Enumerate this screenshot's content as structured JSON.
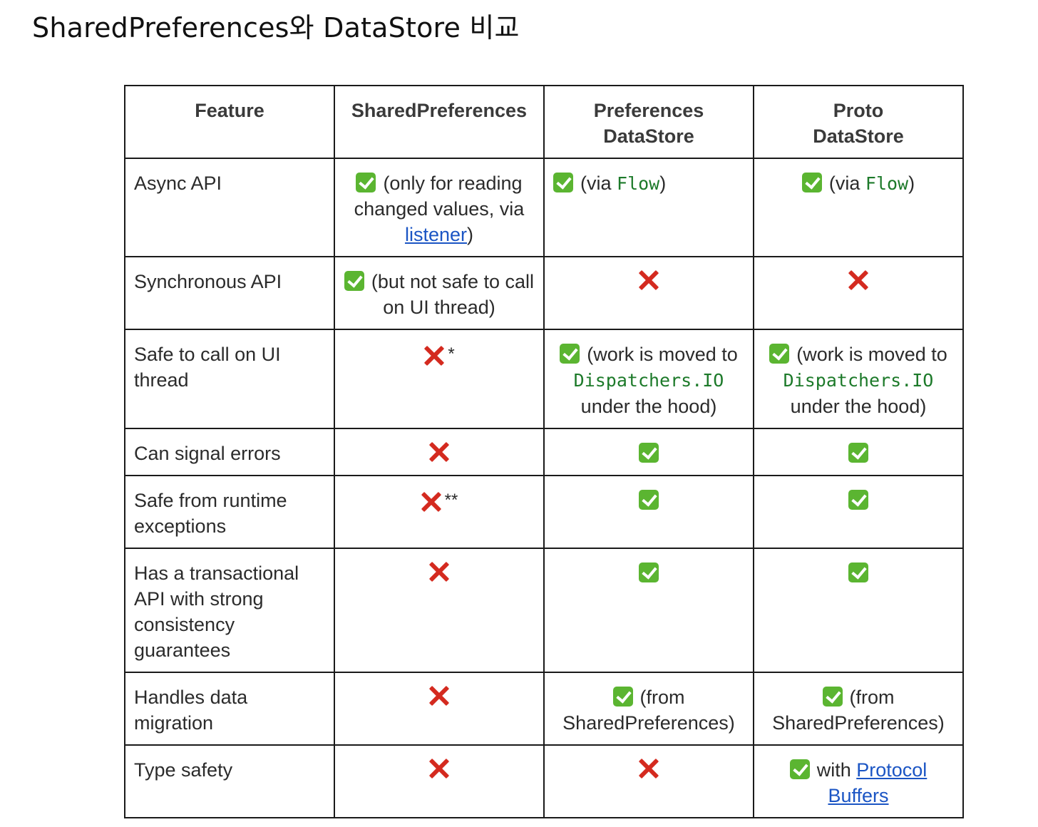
{
  "page": {
    "title": "SharedPreferences와 DataStore 비교"
  },
  "table": {
    "headers": {
      "feature": "Feature",
      "shared": "SharedPreferences",
      "prefs_line1": "Preferences",
      "prefs_line2": "DataStore",
      "proto_line1": "Proto",
      "proto_line2": "DataStore"
    },
    "rows": {
      "async_api": {
        "feature": "Async API",
        "shared_text_before": "(only for reading changed values, via ",
        "shared_link": "listener",
        "shared_text_after": ")",
        "prefs_before": "(via ",
        "prefs_code": "Flow",
        "prefs_after": ")",
        "proto_before": "(via ",
        "proto_code": "Flow",
        "proto_after": ")"
      },
      "sync_api": {
        "feature": "Synchronous API",
        "shared_text": "(but not safe to call on UI thread)"
      },
      "ui_thread": {
        "feature": "Safe to call on UI thread",
        "shared_note": "*",
        "prefs_before": "(work is moved to ",
        "prefs_code": "Dispatchers.IO",
        "prefs_after": " under the hood)",
        "proto_before": "(work is moved to ",
        "proto_code": "Dispatchers.IO",
        "proto_after": " under the hood)"
      },
      "signal_errors": {
        "feature": "Can signal errors"
      },
      "runtime_exceptions": {
        "feature": "Safe from runtime exceptions",
        "shared_note": "**"
      },
      "transactional": {
        "feature": "Has a transactional API with strong consistency guarantees"
      },
      "migration": {
        "feature": "Handles data migration",
        "prefs_text": "(from SharedPreferences)",
        "proto_text": "(from SharedPreferences)"
      },
      "type_safety": {
        "feature": "Type safety",
        "proto_before": "with ",
        "proto_link": "Protocol Buffers"
      }
    }
  },
  "icons": {
    "yes": "check-mark-icon",
    "no": "cross-mark-icon"
  },
  "colors": {
    "check_green": "#5bb531",
    "cross_red": "#d42a1f",
    "code_green": "#1d7a2a",
    "link_blue": "#1b55c4"
  }
}
